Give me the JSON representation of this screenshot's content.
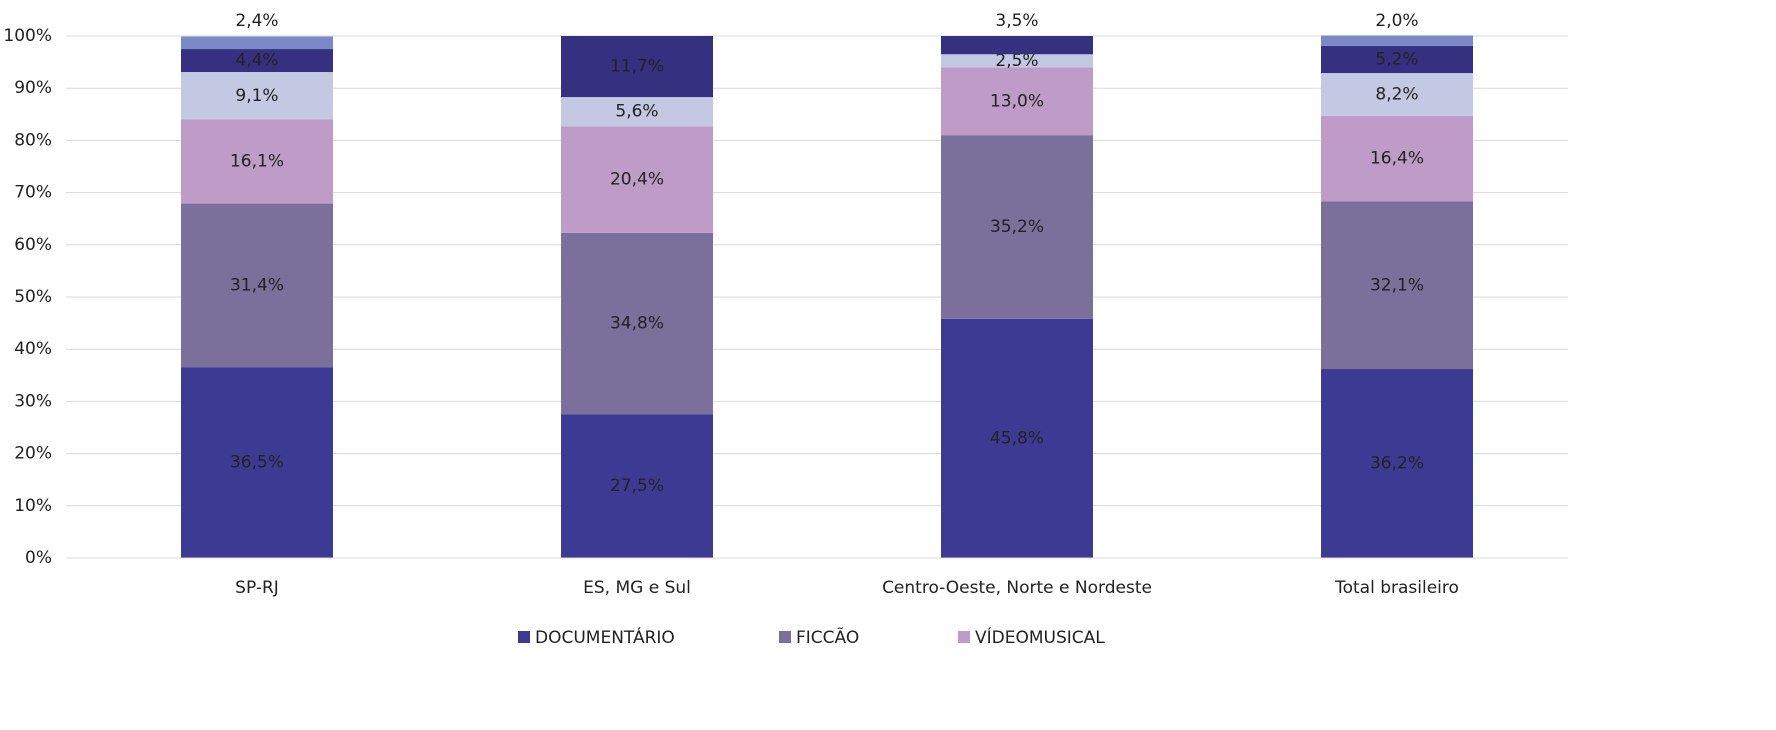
{
  "chart_data": {
    "type": "stacked_bar",
    "categories": [
      "SP-RJ",
      "ES, MG e Sul",
      "Centro-Oeste, Norte e Nordeste",
      "Total brasileiro"
    ],
    "series": [
      {
        "name": "DOCUMENTÁRIO",
        "color": "#3d3a93",
        "label_color": "#ffffff",
        "values": [
          36.5,
          27.5,
          45.8,
          36.2
        ],
        "value_labels": [
          "36,5%",
          "27,5%",
          "45,8%",
          "36,2%"
        ]
      },
      {
        "name": "FICCÃO",
        "color": "#7b6f9c",
        "label_color": "#ffffff",
        "values": [
          31.4,
          34.8,
          35.2,
          32.1
        ],
        "value_labels": [
          "31,4%",
          "34,8%",
          "35,2%",
          "32,1%"
        ]
      },
      {
        "name": "VÍDEOMUSICAL",
        "color": "#bf9cc7",
        "label_color": "#ffffff",
        "values": [
          16.1,
          20.4,
          13.0,
          16.4
        ],
        "value_labels": [
          "16,1%",
          "20,4%",
          "13,0%",
          "16,4%"
        ]
      },
      {
        "color": "#c3c8e3",
        "label_color": "#222222",
        "values": [
          9.1,
          5.6,
          2.5,
          8.2
        ],
        "value_labels": [
          "9,1%",
          "5,6%",
          "2,5%",
          "8,2%"
        ]
      },
      {
        "color": "#35307f",
        "label_color": "#ffffff",
        "values": [
          4.4,
          11.7,
          3.5,
          5.2
        ],
        "value_labels": [
          "4,4%",
          "11,7%",
          "3,5%",
          "5,2%"
        ]
      },
      {
        "color": "#7b8ac7",
        "label_color": "#222222",
        "values": [
          2.4,
          null,
          null,
          2.0
        ],
        "value_labels": [
          "2,4%",
          null,
          null,
          "2,0%"
        ]
      }
    ],
    "ylim": [
      0,
      100
    ],
    "yticks": [
      {
        "value": 0,
        "label": "0%"
      },
      {
        "value": 10,
        "label": "10%"
      },
      {
        "value": 20,
        "label": "20%"
      },
      {
        "value": 30,
        "label": "30%"
      },
      {
        "value": 40,
        "label": "40%"
      },
      {
        "value": 50,
        "label": "50%"
      },
      {
        "value": 60,
        "label": "60%"
      },
      {
        "value": 70,
        "label": "70%"
      },
      {
        "value": 80,
        "label": "80%"
      },
      {
        "value": 90,
        "label": "90%"
      },
      {
        "value": 100,
        "label": "100%"
      }
    ],
    "grid": true,
    "legend": "bottom"
  }
}
